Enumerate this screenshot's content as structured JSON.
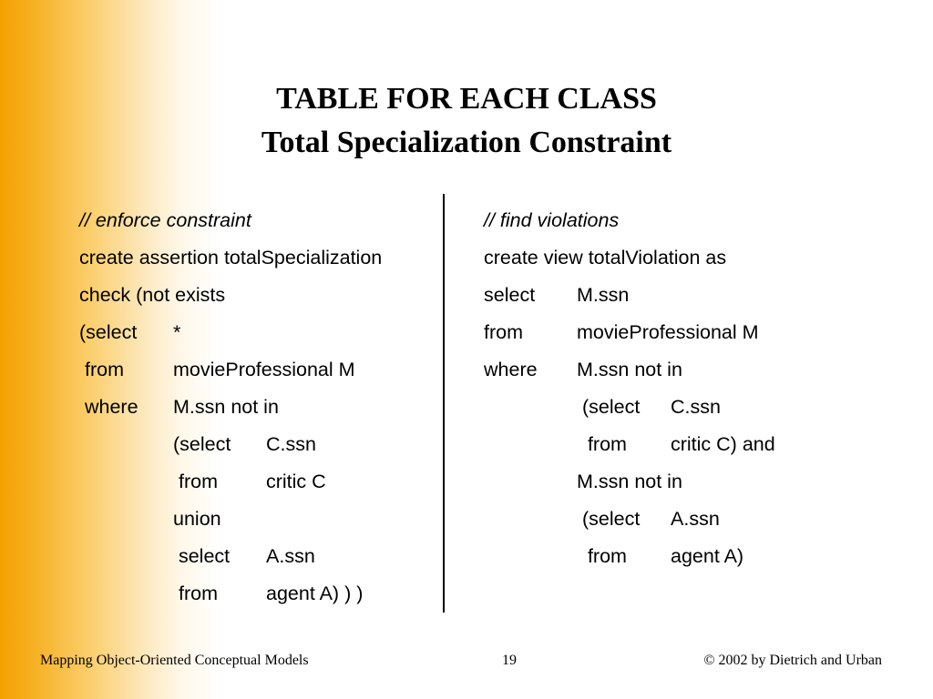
{
  "title": {
    "line1": "TABLE FOR EACH CLASS",
    "line2": "Total Specialization Constraint"
  },
  "left_code": {
    "rows": [
      [
        "// enforce constraint",
        "",
        ""
      ],
      [
        "create assertion totalSpecialization",
        "",
        ""
      ],
      [
        "check (not exists",
        "",
        ""
      ],
      [
        "(select",
        "*",
        ""
      ],
      [
        " from",
        "movieProfessional M",
        ""
      ],
      [
        " where",
        "M.ssn not in",
        ""
      ],
      [
        "",
        "(select",
        "C.ssn"
      ],
      [
        "",
        " from",
        "critic C"
      ],
      [
        "",
        "union",
        ""
      ],
      [
        "",
        " select",
        "A.ssn"
      ],
      [
        "",
        " from",
        "agent A) ) )"
      ]
    ]
  },
  "right_code": {
    "rows": [
      [
        "// find violations",
        "",
        ""
      ],
      [
        "create view totalViolation as",
        "",
        ""
      ],
      [
        "select",
        "M.ssn",
        ""
      ],
      [
        "from",
        "movieProfessional M",
        ""
      ],
      [
        "where",
        "M.ssn not in",
        ""
      ],
      [
        "",
        " (select",
        "C.ssn"
      ],
      [
        "",
        "  from",
        "critic C) and"
      ],
      [
        "",
        "M.ssn not in",
        ""
      ],
      [
        "",
        " (select",
        "A.ssn"
      ],
      [
        "",
        "  from",
        "agent A)"
      ]
    ]
  },
  "footer": {
    "left": "Mapping Object-Oriented Conceptual Models",
    "page": "19",
    "right": "© 2002 by Dietrich and Urban"
  }
}
